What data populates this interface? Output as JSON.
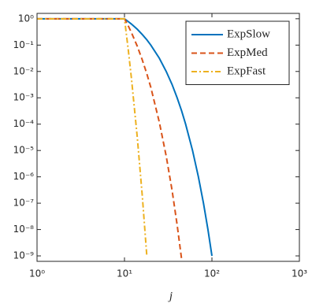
{
  "chart_data": {
    "type": "line",
    "x_label": "j",
    "xscale": "log",
    "yscale": "log",
    "x": [
      1,
      10,
      11,
      12,
      14,
      16,
      18,
      20,
      25,
      30,
      35,
      40,
      45,
      50,
      60,
      70,
      80,
      90,
      100
    ],
    "series": [
      {
        "name": "ExpSlow",
        "color": "#0072bd",
        "line_style": "solid",
        "values": [
          1,
          1,
          0.79,
          0.63,
          0.4,
          0.25,
          0.16,
          0.1,
          0.032,
          0.01,
          0.0032,
          0.001,
          0.00032,
          0.0001,
          1e-05,
          1e-06,
          1e-07,
          1e-08,
          1e-09
        ]
      },
      {
        "name": "ExpMed",
        "color": "#d95319",
        "line_style": "dashed",
        "values": [
          1,
          1,
          0.55,
          0.3,
          0.091,
          0.027,
          0.0082,
          0.0025,
          0.00012,
          6.1e-06,
          3.1e-07,
          1.5e-08,
          7.5e-10,
          null,
          null,
          null,
          null,
          null,
          null
        ]
      },
      {
        "name": "ExpFast",
        "color": "#edb120",
        "line_style": "dashdot",
        "values": [
          1,
          1,
          0.075,
          0.0056,
          3.2e-05,
          1.8e-07,
          1e-09,
          null,
          null,
          null,
          null,
          null,
          null,
          null,
          null,
          null,
          null,
          null,
          null
        ]
      }
    ],
    "xlim": [
      1,
      1000
    ],
    "xticks": [
      {
        "value": 1,
        "label": "10⁰"
      },
      {
        "value": 10,
        "label": "10¹"
      },
      {
        "value": 100,
        "label": "10²"
      },
      {
        "value": 1000,
        "label": "10³"
      }
    ],
    "ylim": [
      6.2e-10,
      1.6
    ],
    "yticks": [
      {
        "value": 1,
        "label": "10⁰"
      },
      {
        "value": 0.1,
        "label": "10⁻¹"
      },
      {
        "value": 0.01,
        "label": "10⁻²"
      },
      {
        "value": 0.001,
        "label": "10⁻³"
      },
      {
        "value": 0.0001,
        "label": "10⁻⁴"
      },
      {
        "value": 1e-05,
        "label": "10⁻⁵"
      },
      {
        "value": 1e-06,
        "label": "10⁻⁶"
      },
      {
        "value": 1e-07,
        "label": "10⁻⁷"
      },
      {
        "value": 1e-08,
        "label": "10⁻⁸"
      },
      {
        "value": 1e-09,
        "label": "10⁻⁹"
      }
    ],
    "legend": "upper right",
    "grid": false
  }
}
